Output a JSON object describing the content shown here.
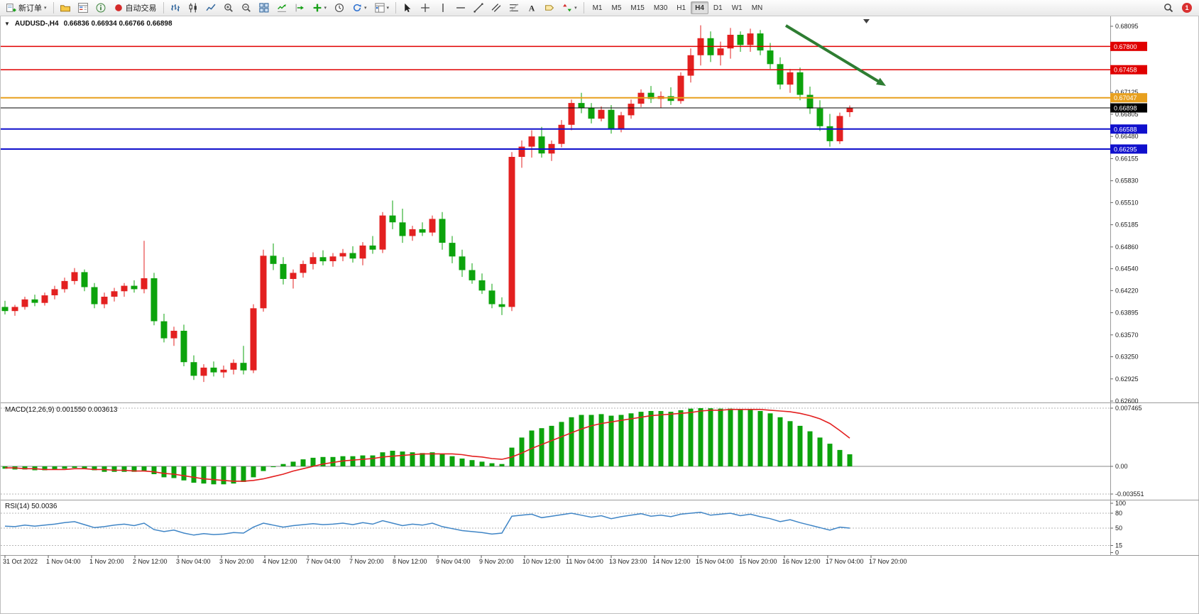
{
  "toolbar": {
    "new_order": "新订单",
    "autotrading": "自动交易",
    "timeframes": [
      "M1",
      "M5",
      "M15",
      "M30",
      "H1",
      "H4",
      "D1",
      "W1",
      "MN"
    ],
    "active_timeframe": "H4",
    "notification_count": "1"
  },
  "icons": {
    "caret_down": "▾",
    "collapse_triangle": "▼",
    "chart_shift_marker": "▼"
  },
  "chart": {
    "symbol_period": "AUDUSD-,H4",
    "ohlc": "0.66836 0.66934 0.66766 0.66898",
    "macd_label": "MACD(12,26,9) 0.001550 0.003613",
    "rsi_label": "RSI(14) 50.0036",
    "price_scale_ticks": [
      "0.68095",
      "0.67770",
      "0.67455",
      "0.67125",
      "0.66805",
      "0.66480",
      "0.66155",
      "0.65830",
      "0.65510",
      "0.65185",
      "0.64860",
      "0.64540",
      "0.64220",
      "0.63895",
      "0.63570",
      "0.63250",
      "0.62925",
      "0.62600"
    ],
    "macd_scale_ticks": [
      "0.007465",
      "0.00",
      "-0.003551"
    ],
    "macd_scale_values": [
      0.007465,
      0,
      -0.003551
    ],
    "rsi_scale_ticks": [
      "100",
      "80",
      "50",
      "15",
      "0"
    ],
    "rsi_scale_values": [
      100,
      80,
      50,
      15,
      0
    ],
    "rsi_levels": [
      80,
      50,
      15
    ],
    "time_labels": [
      "31 Oct 2022",
      "1 Nov 04:00",
      "1 Nov 20:00",
      "2 Nov 12:00",
      "3 Nov 04:00",
      "3 Nov 20:00",
      "4 Nov 12:00",
      "7 Nov 04:00",
      "7 Nov 20:00",
      "8 Nov 12:00",
      "9 Nov 04:00",
      "9 Nov 20:00",
      "10 Nov 12:00",
      "11 Nov 04:00",
      "13 Nov 23:00",
      "14 Nov 12:00",
      "15 Nov 04:00",
      "15 Nov 20:00",
      "16 Nov 12:00",
      "17 Nov 04:00",
      "17 Nov 20:00"
    ],
    "colors": {
      "bull": "#e32020",
      "bear": "#0ca30c",
      "macd_hist": "#0ca30c",
      "macd_signal": "#e32020",
      "rsi_line": "#3f85c6",
      "arrow": "#2e7d32",
      "level_red": "#e00000",
      "level_orange": "#e8a01e",
      "level_blue": "#1010cc",
      "level_black": "#000000"
    },
    "hlines": [
      {
        "price": 0.678,
        "label": "0.67800",
        "color": "#e00000",
        "width": 1.5
      },
      {
        "price": 0.67458,
        "label": "0.67458",
        "color": "#e00000",
        "width": 1.5
      },
      {
        "price": 0.67047,
        "label": "0.67047",
        "color": "#e8a01e",
        "width": 2
      },
      {
        "price": 0.66898,
        "label": "0.66898",
        "color": "#000000",
        "width": 1
      },
      {
        "price": 0.66588,
        "label": "0.66588",
        "color": "#1010cc",
        "width": 2
      },
      {
        "price": 0.66295,
        "label": "0.66295",
        "color": "#1010cc",
        "width": 2
      }
    ]
  },
  "chart_data": {
    "type": "candlestick",
    "symbol": "AUDUSD",
    "timeframe": "H4",
    "price_axis_range": [
      0.626,
      0.68095
    ],
    "current_bar": {
      "open": 0.66836,
      "high": 0.66934,
      "low": 0.66766,
      "close": 0.66898
    },
    "candles_ohlc": [
      [
        0.6398,
        0.6407,
        0.6387,
        0.6392
      ],
      [
        0.6392,
        0.6401,
        0.6385,
        0.6398
      ],
      [
        0.6398,
        0.6413,
        0.6394,
        0.6409
      ],
      [
        0.6409,
        0.6416,
        0.6399,
        0.6404
      ],
      [
        0.6404,
        0.6419,
        0.64,
        0.6415
      ],
      [
        0.6415,
        0.6429,
        0.6409,
        0.6424
      ],
      [
        0.6424,
        0.6441,
        0.6419,
        0.6436
      ],
      [
        0.6436,
        0.6455,
        0.6431,
        0.6449
      ],
      [
        0.6449,
        0.6453,
        0.6421,
        0.6427
      ],
      [
        0.6427,
        0.6433,
        0.6396,
        0.6402
      ],
      [
        0.6402,
        0.6419,
        0.6396,
        0.6413
      ],
      [
        0.6413,
        0.6426,
        0.6406,
        0.6421
      ],
      [
        0.6421,
        0.6433,
        0.6413,
        0.6429
      ],
      [
        0.6429,
        0.6437,
        0.6419,
        0.6424
      ],
      [
        0.6424,
        0.6495,
        0.6418,
        0.644
      ],
      [
        0.644,
        0.6448,
        0.6371,
        0.6377
      ],
      [
        0.6377,
        0.6388,
        0.6346,
        0.6352
      ],
      [
        0.6352,
        0.6369,
        0.6341,
        0.6363
      ],
      [
        0.6363,
        0.6372,
        0.6311,
        0.6317
      ],
      [
        0.6317,
        0.6327,
        0.6291,
        0.6297
      ],
      [
        0.6297,
        0.6314,
        0.6288,
        0.6309
      ],
      [
        0.6309,
        0.6318,
        0.6296,
        0.6302
      ],
      [
        0.6302,
        0.6312,
        0.6294,
        0.6306
      ],
      [
        0.6306,
        0.6321,
        0.6299,
        0.6316
      ],
      [
        0.6316,
        0.6341,
        0.6299,
        0.6305
      ],
      [
        0.6305,
        0.6402,
        0.6301,
        0.6396
      ],
      [
        0.6396,
        0.6482,
        0.6391,
        0.6473
      ],
      [
        0.6473,
        0.6491,
        0.6452,
        0.6461
      ],
      [
        0.6461,
        0.6471,
        0.6431,
        0.6439
      ],
      [
        0.6439,
        0.6453,
        0.6425,
        0.6448
      ],
      [
        0.6448,
        0.6466,
        0.6441,
        0.6461
      ],
      [
        0.6461,
        0.6478,
        0.6453,
        0.6471
      ],
      [
        0.6471,
        0.6481,
        0.6459,
        0.6465
      ],
      [
        0.6465,
        0.6477,
        0.6457,
        0.6472
      ],
      [
        0.6472,
        0.6483,
        0.6465,
        0.6477
      ],
      [
        0.6477,
        0.6487,
        0.6463,
        0.6469
      ],
      [
        0.6469,
        0.6493,
        0.6459,
        0.6488
      ],
      [
        0.6488,
        0.6502,
        0.6476,
        0.6482
      ],
      [
        0.6482,
        0.6537,
        0.6477,
        0.6532
      ],
      [
        0.6532,
        0.6554,
        0.6512,
        0.6522
      ],
      [
        0.6522,
        0.6542,
        0.6492,
        0.6502
      ],
      [
        0.6502,
        0.6517,
        0.6495,
        0.6512
      ],
      [
        0.6512,
        0.6522,
        0.6502,
        0.6507
      ],
      [
        0.6507,
        0.6532,
        0.6502,
        0.6527
      ],
      [
        0.6527,
        0.6537,
        0.6482,
        0.6492
      ],
      [
        0.6492,
        0.6502,
        0.6462,
        0.6472
      ],
      [
        0.6472,
        0.6482,
        0.6442,
        0.6452
      ],
      [
        0.6452,
        0.6462,
        0.6432,
        0.6437
      ],
      [
        0.6437,
        0.6447,
        0.6417,
        0.6422
      ],
      [
        0.6422,
        0.6432,
        0.6396,
        0.6402
      ],
      [
        0.6402,
        0.6412,
        0.6386,
        0.6398
      ],
      [
        0.6398,
        0.6625,
        0.6392,
        0.6618
      ],
      [
        0.6618,
        0.6642,
        0.6602,
        0.6633
      ],
      [
        0.6633,
        0.6657,
        0.6617,
        0.6648
      ],
      [
        0.6648,
        0.6662,
        0.6617,
        0.6623
      ],
      [
        0.6623,
        0.6642,
        0.6612,
        0.6637
      ],
      [
        0.6637,
        0.6672,
        0.6632,
        0.6665
      ],
      [
        0.6665,
        0.6702,
        0.6657,
        0.6697
      ],
      [
        0.6697,
        0.6712,
        0.6682,
        0.669
      ],
      [
        0.669,
        0.6697,
        0.6667,
        0.6674
      ],
      [
        0.6674,
        0.6692,
        0.667,
        0.6687
      ],
      [
        0.6687,
        0.6694,
        0.6652,
        0.6659
      ],
      [
        0.6659,
        0.6684,
        0.6654,
        0.6679
      ],
      [
        0.6679,
        0.6702,
        0.6674,
        0.6696
      ],
      [
        0.6696,
        0.6717,
        0.6691,
        0.6712
      ],
      [
        0.6712,
        0.6722,
        0.6697,
        0.6703
      ],
      [
        0.6703,
        0.6714,
        0.669,
        0.6707
      ],
      [
        0.6707,
        0.672,
        0.6694,
        0.67
      ],
      [
        0.67,
        0.6742,
        0.6696,
        0.6737
      ],
      [
        0.6737,
        0.6777,
        0.6727,
        0.6767
      ],
      [
        0.6767,
        0.6811,
        0.6752,
        0.6792
      ],
      [
        0.6792,
        0.6802,
        0.6757,
        0.6767
      ],
      [
        0.6767,
        0.6787,
        0.6752,
        0.6777
      ],
      [
        0.6777,
        0.6807,
        0.6762,
        0.6797
      ],
      [
        0.6797,
        0.6802,
        0.6772,
        0.6782
      ],
      [
        0.6782,
        0.6806,
        0.6772,
        0.6799
      ],
      [
        0.6799,
        0.6804,
        0.6767,
        0.6774
      ],
      [
        0.6774,
        0.6785,
        0.6747,
        0.6754
      ],
      [
        0.6754,
        0.6764,
        0.6717,
        0.6724
      ],
      [
        0.6724,
        0.6747,
        0.6712,
        0.6742
      ],
      [
        0.6742,
        0.6749,
        0.6701,
        0.6709
      ],
      [
        0.6709,
        0.6721,
        0.6681,
        0.6689
      ],
      [
        0.6689,
        0.6701,
        0.6656,
        0.6663
      ],
      [
        0.6663,
        0.6681,
        0.6633,
        0.6641
      ],
      [
        0.6641,
        0.6683,
        0.6637,
        0.6678
      ],
      [
        0.66836,
        0.66934,
        0.66766,
        0.66898
      ]
    ],
    "indicators": {
      "macd": {
        "label": "MACD(12,26,9)",
        "current_values": [
          0.00155,
          0.003613
        ],
        "histogram": [
          -0.0003,
          -0.0004,
          -0.0004,
          -0.0005,
          -0.0005,
          -0.0004,
          -0.0003,
          -0.0002,
          -0.0003,
          -0.0005,
          -0.0007,
          -0.0007,
          -0.0007,
          -0.0007,
          -0.0006,
          -0.001,
          -0.0014,
          -0.0015,
          -0.0018,
          -0.0021,
          -0.0022,
          -0.0023,
          -0.0023,
          -0.0022,
          -0.002,
          -0.0014,
          -0.0006,
          -0.0001,
          0.0003,
          0.0006,
          0.0009,
          0.0011,
          0.0012,
          0.0012,
          0.0013,
          0.0013,
          0.0014,
          0.0014,
          0.0018,
          0.002,
          0.0019,
          0.0018,
          0.0017,
          0.0018,
          0.0016,
          0.0013,
          0.001,
          0.0008,
          0.0006,
          0.0004,
          0.0003,
          0.0024,
          0.0037,
          0.0046,
          0.0049,
          0.0052,
          0.0057,
          0.0063,
          0.0066,
          0.0066,
          0.0067,
          0.0065,
          0.0066,
          0.0068,
          0.007,
          0.0071,
          0.0071,
          0.007,
          0.0072,
          0.0074,
          0.007465,
          0.00745,
          0.0074,
          0.0074,
          0.0073,
          0.0073,
          0.0071,
          0.0068,
          0.0063,
          0.0058,
          0.0052,
          0.0045,
          0.0037,
          0.0029,
          0.0021,
          0.00155
        ],
        "signal": [
          -0.0002,
          -0.0002,
          -0.0003,
          -0.0003,
          -0.0004,
          -0.0004,
          -0.0004,
          -0.0003,
          -0.0003,
          -0.0004,
          -0.0004,
          -0.0005,
          -0.0005,
          -0.0006,
          -0.0006,
          -0.0007,
          -0.0009,
          -0.001,
          -0.0012,
          -0.0014,
          -0.0016,
          -0.0017,
          -0.0018,
          -0.0019,
          -0.0019,
          -0.0018,
          -0.0016,
          -0.0013,
          -0.001,
          -0.0006,
          -0.0003,
          0.0,
          0.0003,
          0.0005,
          0.0007,
          0.0008,
          0.0009,
          0.001,
          0.0012,
          0.0013,
          0.0014,
          0.0015,
          0.0016,
          0.0016,
          0.0016,
          0.0016,
          0.0015,
          0.0013,
          0.0012,
          0.001,
          0.0009,
          0.0012,
          0.0017,
          0.0023,
          0.0028,
          0.0033,
          0.0038,
          0.0043,
          0.0048,
          0.0052,
          0.0055,
          0.0057,
          0.0059,
          0.0061,
          0.0063,
          0.0065,
          0.0066,
          0.0067,
          0.0068,
          0.0069,
          0.0071,
          0.0072,
          0.0072,
          0.0073,
          0.0073,
          0.0073,
          0.0073,
          0.0072,
          0.0071,
          0.007,
          0.0068,
          0.0065,
          0.0061,
          0.0055,
          0.0046,
          0.003613
        ]
      },
      "rsi": {
        "label": "RSI(14)",
        "current_value": 50.0036,
        "values": [
          54,
          53,
          56,
          54,
          56,
          58,
          61,
          63,
          57,
          51,
          53,
          56,
          58,
          55,
          60,
          47,
          43,
          46,
          40,
          36,
          39,
          37,
          38,
          41,
          40,
          52,
          60,
          56,
          52,
          55,
          57,
          59,
          57,
          58,
          60,
          57,
          61,
          58,
          65,
          60,
          55,
          58,
          56,
          60,
          53,
          49,
          45,
          43,
          41,
          38,
          40,
          74,
          76,
          78,
          71,
          74,
          77,
          80,
          76,
          72,
          75,
          69,
          73,
          76,
          79,
          74,
          76,
          73,
          78,
          80,
          82,
          76,
          78,
          80,
          75,
          78,
          73,
          69,
          63,
          67,
          61,
          56,
          51,
          46,
          52,
          50.0036
        ]
      }
    },
    "horizontal_levels": [
      0.678,
      0.67458,
      0.67047,
      0.66898,
      0.66588,
      0.66295
    ],
    "annotations": [
      {
        "type": "arrow",
        "direction": "down-right",
        "color": "#2e7d32"
      }
    ]
  }
}
